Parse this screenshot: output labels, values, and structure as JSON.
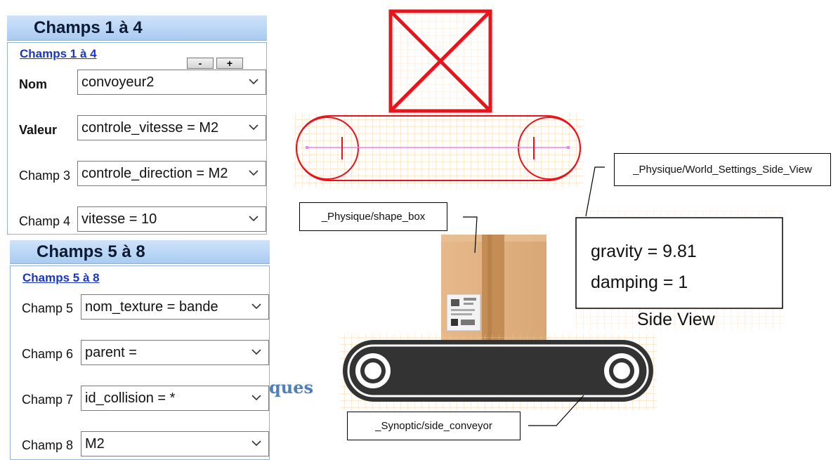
{
  "panel1": {
    "header": "Champs 1 à 4",
    "link": "Champs 1 à 4",
    "minus_label": "-",
    "plus_label": "+",
    "fields": [
      {
        "label": "Nom",
        "value": "convoyeur2"
      },
      {
        "label": "Valeur",
        "value": "controle_vitesse = M2"
      },
      {
        "label": "Champ 3",
        "value": "controle_direction = M2"
      },
      {
        "label": "Champ 4",
        "value": "vitesse = 10"
      }
    ]
  },
  "panel2": {
    "header": "Champs 5 à 8",
    "link": "Champs 5 à 8",
    "fields": [
      {
        "label": "Champ 5",
        "value": "nom_texture = bande"
      },
      {
        "label": "Champ 6",
        "value": "parent ="
      },
      {
        "label": "Champ 7",
        "value": "id_collision = *"
      },
      {
        "label": "Champ 8",
        "value": "M2"
      }
    ]
  },
  "background_text": "ques",
  "callouts": {
    "world_settings": "_Physique/World_Settings_Side_View",
    "shape_box": "_Physique/shape_box",
    "side_conveyor": "_Synoptic/side_conveyor"
  },
  "world_box": {
    "gravity": "gravity = 9.81",
    "damping": "damping = 1",
    "caption": "Side View"
  },
  "colors": {
    "header_bg": "#b9d4f4",
    "link": "#1a35c9",
    "physics_shape": "#e8131b",
    "axis_line": "#ee82ee",
    "conveyor_belt": "#333333",
    "box": "#d9a873"
  }
}
